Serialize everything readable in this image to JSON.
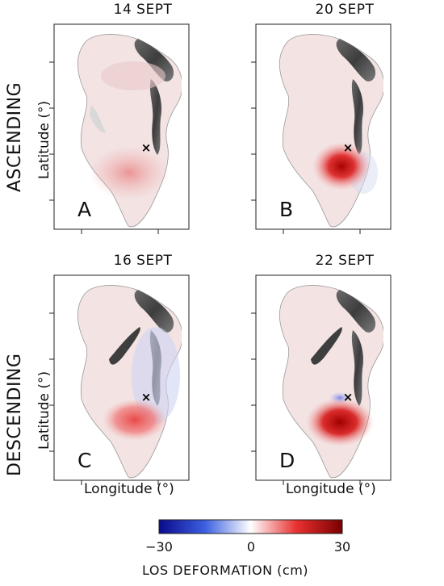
{
  "rows": [
    {
      "label": "ASCENDING"
    },
    {
      "label": "DESCENDING"
    }
  ],
  "panels": [
    {
      "title": "14 SEPT",
      "letter": "A"
    },
    {
      "title": "20 SEPT",
      "letter": "B"
    },
    {
      "title": "16 SEPT",
      "letter": "C"
    },
    {
      "title": "22 SEPT",
      "letter": "D"
    }
  ],
  "axes": {
    "xlabel": "Longitude (°)",
    "ylabel": "Latitude (°)"
  },
  "colorbar": {
    "title": "LOS DEFORMATION (cm)",
    "min_label": "−30",
    "mid_label": "0",
    "max_label": "30",
    "min": -30,
    "max": 30,
    "colors": [
      "#0a0a8c",
      "#3b5fe0",
      "#ffffff",
      "#e83030",
      "#7a0000"
    ]
  }
}
